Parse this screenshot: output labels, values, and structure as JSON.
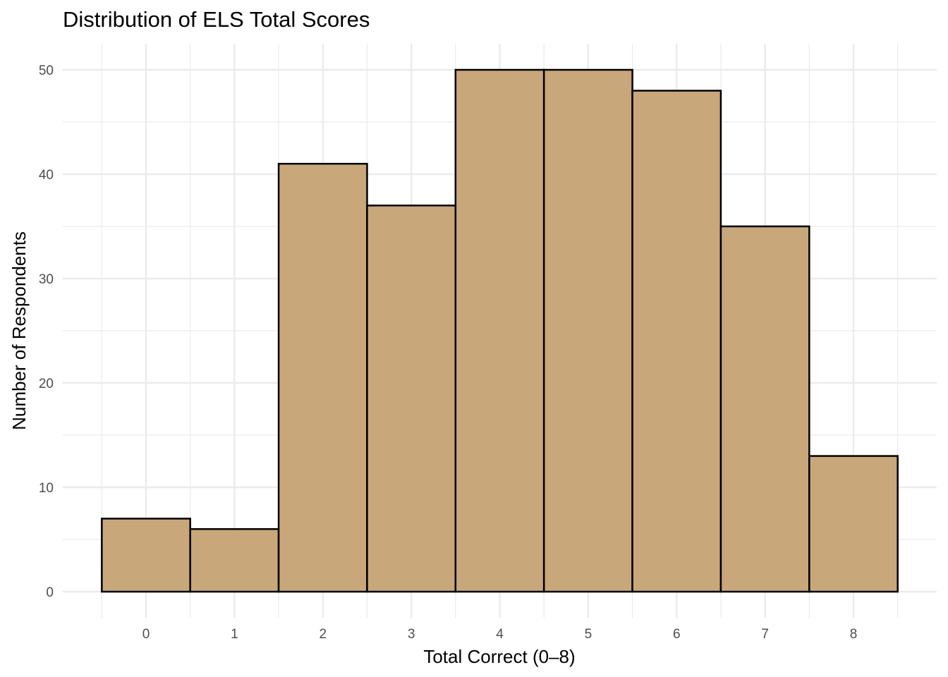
{
  "chart_data": {
    "type": "bar",
    "title": "Distribution of ELS Total Scores",
    "xlabel": "Total Correct (0–8)",
    "ylabel": "Number of Respondents",
    "categories": [
      "0",
      "1",
      "2",
      "3",
      "4",
      "5",
      "6",
      "7",
      "8"
    ],
    "values": [
      7,
      6,
      41,
      37,
      50,
      50,
      48,
      35,
      13
    ],
    "ylim": [
      0,
      52.5
    ],
    "xlim": [
      -0.5,
      8.5
    ],
    "yticks": [
      0,
      10,
      20,
      30,
      40,
      50
    ],
    "grid": true,
    "legend": "none",
    "bar_fill": "#c8a77a",
    "bar_edge": "#000000",
    "grid_color": "#ebebeb"
  }
}
